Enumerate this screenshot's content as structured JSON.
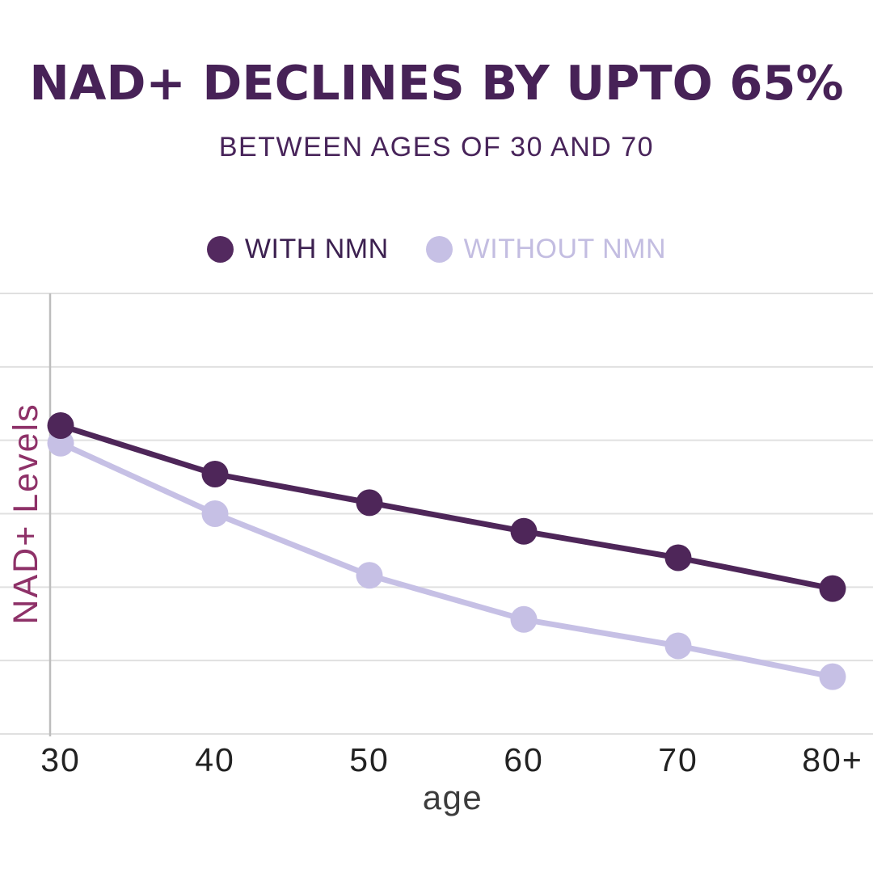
{
  "header": {
    "title": "NAD+ DECLINES BY UPTO 65%",
    "subtitle": "BETWEEN AGES OF 30 AND 70"
  },
  "legend": {
    "items": [
      {
        "label": "WITH NMN",
        "dot_color": "#53295f",
        "text_color": "#3c2050"
      },
      {
        "label": "WITHOUT NMN",
        "dot_color": "#c6c0e5",
        "text_color": "#c3bde1"
      }
    ]
  },
  "chart_data": {
    "type": "line",
    "categories": [
      "30",
      "40",
      "50",
      "60",
      "70",
      "80+"
    ],
    "series": [
      {
        "name": "WITH NMN",
        "color": "#4e2659",
        "values": [
          70,
          59,
          52.5,
          46,
          40,
          33
        ]
      },
      {
        "name": "WITHOUT NMN",
        "color": "#c6c0e5",
        "values": [
          66,
          50,
          36,
          26,
          20,
          13
        ]
      }
    ],
    "xlabel": "age",
    "ylabel": "NAD+ Levels",
    "ylim": [
      0,
      100
    ],
    "y_tick_labels_shown": false,
    "gridlines": "horizontal",
    "gridline_count": 7,
    "legend_position": "top"
  },
  "colors": {
    "background": "#ffffff",
    "title": "#472257",
    "gridline": "#e0e0e0",
    "axis_line": "#bdbdbd",
    "tick_label": "#222222",
    "xlabel": "#3c3c3c",
    "ylabel": "#8e3168"
  }
}
